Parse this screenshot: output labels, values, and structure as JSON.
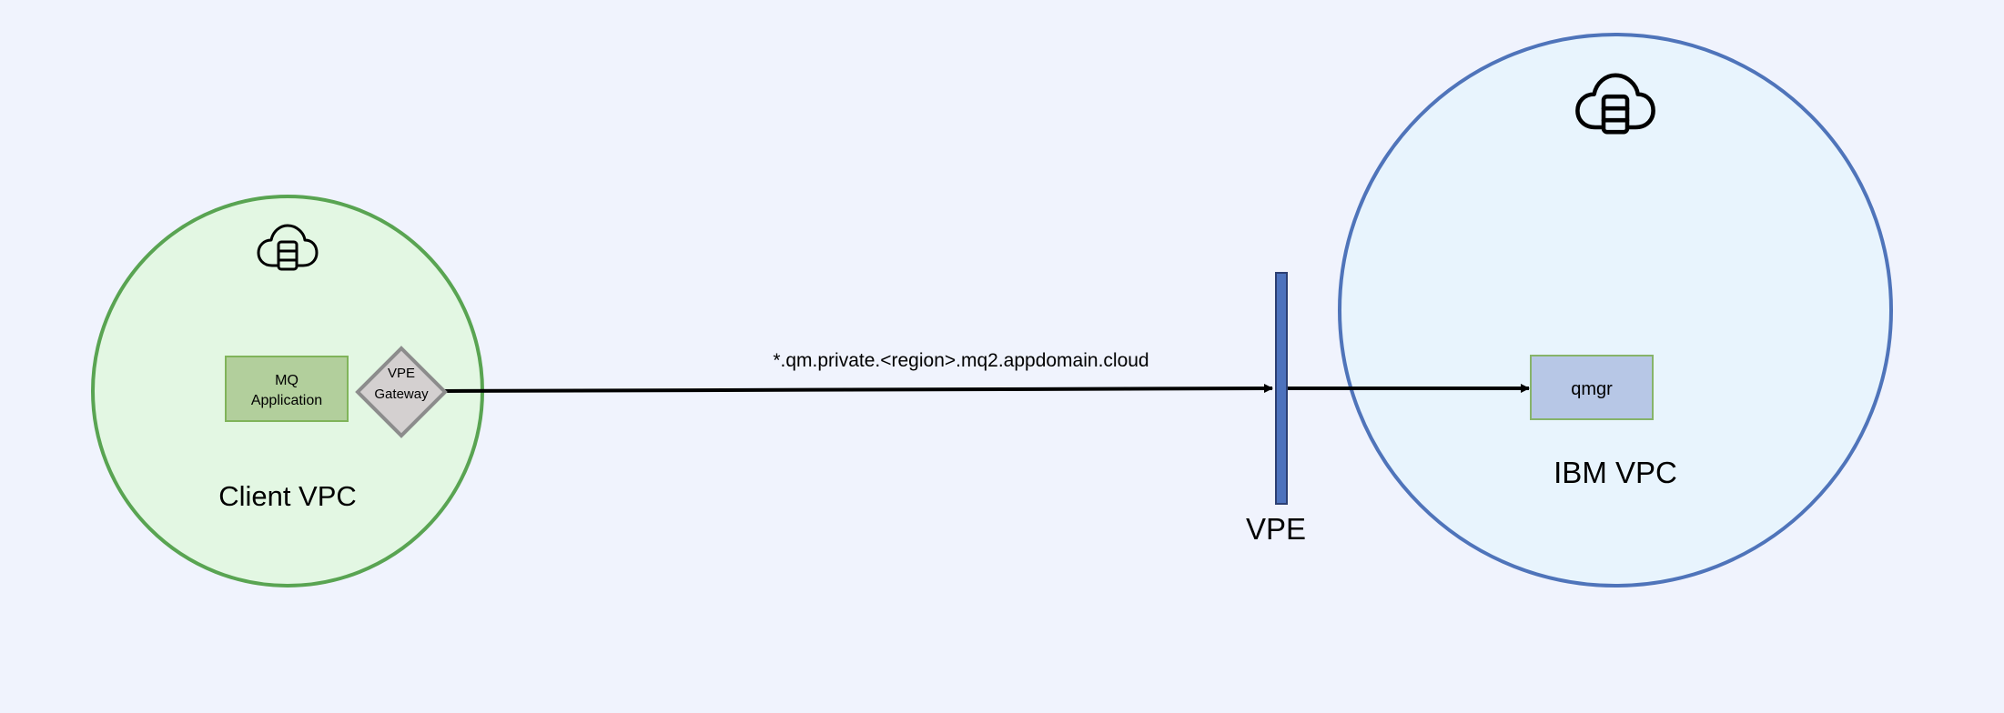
{
  "client_vpc": {
    "label": "Client VPC",
    "icon": "cloud-database-icon",
    "fill": "#e3f7e3",
    "stroke": "#59a452"
  },
  "mq_application": {
    "line1": "MQ",
    "line2": "Application",
    "fill": "#b2cf9c",
    "stroke": "#80b45a"
  },
  "vpe_gateway": {
    "line1": "VPE",
    "line2": "Gateway",
    "fill": "#d4d0d0",
    "stroke": "#8c8c8c"
  },
  "connection": {
    "label": "*.qm.private.<region>.mq2.appdomain.cloud"
  },
  "vpe_endpoint": {
    "label": "VPE",
    "fill": "#4d72bd",
    "stroke": "#2c3f73"
  },
  "ibm_vpc": {
    "label": "IBM VPC",
    "icon": "cloud-database-icon",
    "fill": "#e8f4fd",
    "stroke": "#4f74ba"
  },
  "qmgr": {
    "label": "qmgr",
    "fill": "#b7c7e6",
    "stroke": "#86b46a"
  }
}
